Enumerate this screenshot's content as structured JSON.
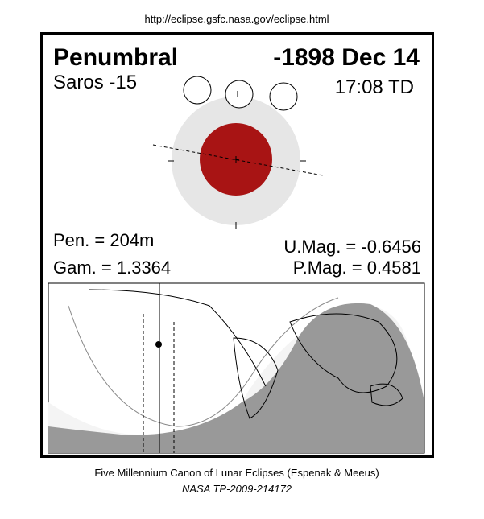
{
  "header": {
    "url": "http://eclipse.gsfc.nasa.gov/eclipse.html"
  },
  "eclipse": {
    "type": "Penumbral",
    "date": "-1898 Dec 14",
    "saros": "Saros -15",
    "time": "17:08 TD",
    "pen": "Pen. = 204m",
    "gam": "Gam. = 1.3364",
    "umag": "U.Mag. = -0.6456",
    "pmag": "P.Mag. = 0.4581"
  },
  "footer": {
    "canon": "Five Millennium Canon of Lunar Eclipses (Espenak & Meeus)",
    "report": "NASA TP-2009-214172"
  }
}
